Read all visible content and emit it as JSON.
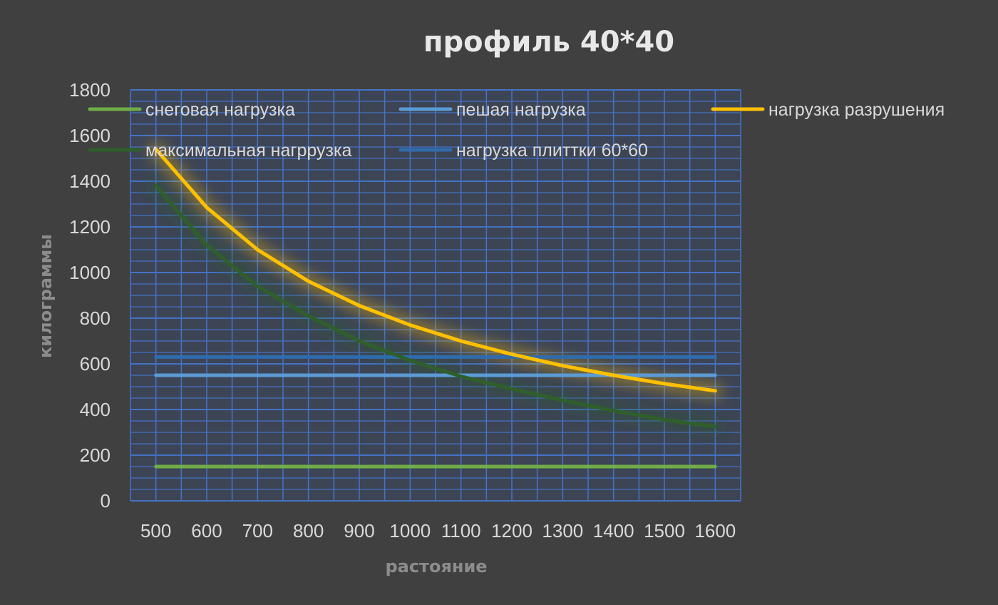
{
  "chart_data": {
    "type": "line",
    "title": "профиль 40*40",
    "xlabel": "растояние",
    "ylabel": "килограммы",
    "x": [
      500,
      600,
      700,
      800,
      900,
      1000,
      1100,
      1200,
      1300,
      1400,
      1500,
      1600
    ],
    "x_tick_labels": [
      "500",
      "600",
      "700",
      "800",
      "900",
      "1000",
      "1100",
      "1200",
      "1300",
      "1400",
      "1500",
      "1600"
    ],
    "ylim": [
      0,
      1800
    ],
    "y_ticks": [
      0,
      200,
      400,
      600,
      800,
      1000,
      1200,
      1400,
      1600,
      1800
    ],
    "y_tick_labels": [
      "0",
      "200",
      "400",
      "600",
      "800",
      "1000",
      "1200",
      "1400",
      "1600",
      "1800"
    ],
    "grid": true,
    "grid_color": "#4472c4",
    "legend_position": "top, inside plot",
    "series": [
      {
        "name": "снеговая нагрузка",
        "color": "#70ad47",
        "values": [
          150,
          150,
          150,
          150,
          150,
          150,
          150,
          150,
          150,
          150,
          150,
          150
        ]
      },
      {
        "name": "пешая нагрузка",
        "color": "#5b9bd5",
        "values": [
          550,
          550,
          550,
          550,
          550,
          550,
          550,
          550,
          550,
          550,
          550,
          550
        ]
      },
      {
        "name": "нагрузка разрушения",
        "color": "#ffc000",
        "values": [
          1540,
          1285,
          1100,
          962,
          855,
          770,
          700,
          642,
          592,
          550,
          513,
          482
        ]
      },
      {
        "name": "максимальная нагррузка",
        "color": "#2f5f2a",
        "values": [
          1380,
          1120,
          940,
          810,
          700,
          615,
          545,
          490,
          440,
          395,
          355,
          325
        ]
      },
      {
        "name": "нагрузка плиттки 60*60",
        "color": "#2f6cad",
        "values": [
          630,
          630,
          630,
          630,
          630,
          630,
          630,
          630,
          630,
          630,
          630,
          630
        ]
      }
    ]
  }
}
